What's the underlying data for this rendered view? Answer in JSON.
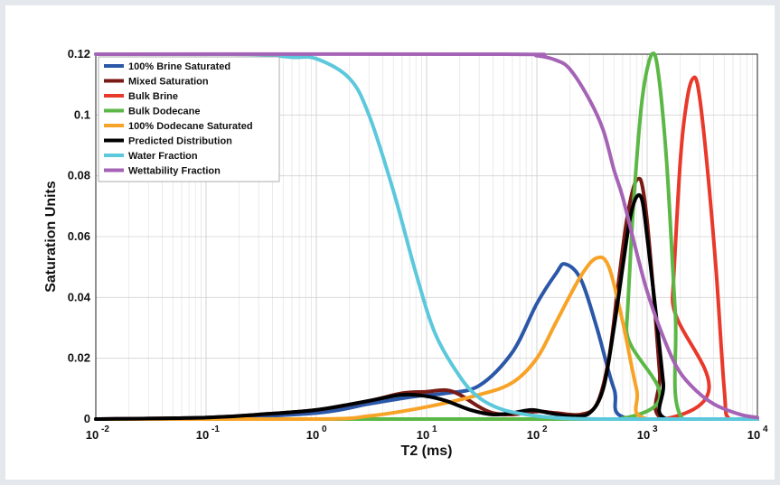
{
  "chart_data": {
    "type": "line",
    "title": "",
    "xlabel": "T2 (ms)",
    "ylabel": "Saturation Units",
    "xscale": "log",
    "xlim": [
      0.01,
      10000
    ],
    "ylim": [
      0,
      0.12
    ],
    "x_ticks": [
      {
        "base": "10",
        "exp": "-2",
        "value": 0.01
      },
      {
        "base": "10",
        "exp": "-1",
        "value": 0.1
      },
      {
        "base": "10",
        "exp": "0",
        "value": 1
      },
      {
        "base": "10",
        "exp": "1",
        "value": 10
      },
      {
        "base": "10",
        "exp": "2",
        "value": 100
      },
      {
        "base": "10",
        "exp": "3",
        "value": 1000
      },
      {
        "base": "10",
        "exp": "4",
        "value": 10000
      }
    ],
    "y_ticks": [
      {
        "label": "0",
        "value": 0
      },
      {
        "label": "0.02",
        "value": 0.02
      },
      {
        "label": "0.04",
        "value": 0.04
      },
      {
        "label": "0.06",
        "value": 0.06
      },
      {
        "label": "0.08",
        "value": 0.08
      },
      {
        "label": "0.1",
        "value": 0.1
      },
      {
        "label": "0.12",
        "value": 0.12
      }
    ],
    "grid": true,
    "legend_position": "top-left",
    "series": [
      {
        "name": "100% Brine Saturated",
        "color": "#2b57a8",
        "points": [
          [
            0.01,
            0
          ],
          [
            0.1,
            0.0003
          ],
          [
            1,
            0.002
          ],
          [
            3,
            0.005
          ],
          [
            8,
            0.0075
          ],
          [
            15,
            0.0085
          ],
          [
            30,
            0.011
          ],
          [
            60,
            0.022
          ],
          [
            100,
            0.038
          ],
          [
            150,
            0.048
          ],
          [
            180,
            0.051
          ],
          [
            250,
            0.046
          ],
          [
            350,
            0.03
          ],
          [
            500,
            0.01
          ],
          [
            700,
            0
          ],
          [
            10000,
            0
          ]
        ]
      },
      {
        "name": "Mixed Saturation",
        "color": "#7a1a14",
        "points": [
          [
            0.01,
            0
          ],
          [
            0.1,
            0.0005
          ],
          [
            0.3,
            0.0015
          ],
          [
            1,
            0.003
          ],
          [
            3,
            0.006
          ],
          [
            6,
            0.0085
          ],
          [
            10,
            0.009
          ],
          [
            15,
            0.0095
          ],
          [
            20,
            0.008
          ],
          [
            30,
            0.004
          ],
          [
            40,
            0.002
          ],
          [
            60,
            0.0015
          ],
          [
            100,
            0.0025
          ],
          [
            150,
            0.002
          ],
          [
            250,
            0.0015
          ],
          [
            350,
            0.005
          ],
          [
            450,
            0.02
          ],
          [
            550,
            0.045
          ],
          [
            650,
            0.065
          ],
          [
            750,
            0.076
          ],
          [
            830,
            0.079
          ],
          [
            900,
            0.077
          ],
          [
            1000,
            0.065
          ],
          [
            1150,
            0.04
          ],
          [
            1300,
            0.015
          ],
          [
            1400,
            0
          ],
          [
            10000,
            0
          ]
        ]
      },
      {
        "name": "Bulk Brine",
        "color": "#e8392a",
        "points": [
          [
            0.01,
            0
          ],
          [
            1450,
            0
          ],
          [
            1700,
            0.04
          ],
          [
            2000,
            0.085
          ],
          [
            2300,
            0.105
          ],
          [
            2600,
            0.112
          ],
          [
            2900,
            0.109
          ],
          [
            3400,
            0.088
          ],
          [
            4200,
            0.05
          ],
          [
            5000,
            0.01
          ],
          [
            5600,
            0
          ],
          [
            10000,
            0
          ]
        ]
      },
      {
        "name": "Bulk Dodecane",
        "color": "#5cb846",
        "points": [
          [
            0.01,
            0
          ],
          [
            560,
            0
          ],
          [
            650,
            0.03
          ],
          [
            750,
            0.07
          ],
          [
            900,
            0.105
          ],
          [
            1100,
            0.12
          ],
          [
            1250,
            0.115
          ],
          [
            1500,
            0.085
          ],
          [
            1800,
            0.035
          ],
          [
            2100,
            0
          ],
          [
            10000,
            0
          ]
        ]
      },
      {
        "name": "100% Dodecane Saturated",
        "color": "#f7a327",
        "points": [
          [
            0.01,
            0
          ],
          [
            1,
            0
          ],
          [
            3,
            0.001
          ],
          [
            10,
            0.004
          ],
          [
            30,
            0.008
          ],
          [
            60,
            0.012
          ],
          [
            100,
            0.02
          ],
          [
            150,
            0.032
          ],
          [
            250,
            0.047
          ],
          [
            350,
            0.053
          ],
          [
            450,
            0.05
          ],
          [
            600,
            0.032
          ],
          [
            800,
            0.01
          ],
          [
            1000,
            0
          ],
          [
            10000,
            0
          ]
        ]
      },
      {
        "name": "Predicted Distribution",
        "color": "#000000",
        "points": [
          [
            0.01,
            0
          ],
          [
            0.1,
            0.0005
          ],
          [
            0.3,
            0.0015
          ],
          [
            1,
            0.003
          ],
          [
            3,
            0.006
          ],
          [
            6,
            0.008
          ],
          [
            10,
            0.0075
          ],
          [
            15,
            0.006
          ],
          [
            25,
            0.003
          ],
          [
            40,
            0.0015
          ],
          [
            60,
            0.002
          ],
          [
            90,
            0.003
          ],
          [
            130,
            0.002
          ],
          [
            200,
            0.001
          ],
          [
            300,
            0.002
          ],
          [
            400,
            0.01
          ],
          [
            500,
            0.03
          ],
          [
            600,
            0.05
          ],
          [
            700,
            0.066
          ],
          [
            800,
            0.073
          ],
          [
            900,
            0.072
          ],
          [
            1000,
            0.06
          ],
          [
            1200,
            0.035
          ],
          [
            1400,
            0.012
          ],
          [
            1500,
            0
          ],
          [
            10000,
            0
          ]
        ]
      },
      {
        "name": "Water Fraction",
        "color": "#5cc8dc",
        "points": [
          [
            0.01,
            0.12
          ],
          [
            0.1,
            0.12
          ],
          [
            0.3,
            0.1199
          ],
          [
            0.6,
            0.119
          ],
          [
            1,
            0.1185
          ],
          [
            2,
            0.112
          ],
          [
            3,
            0.1
          ],
          [
            5,
            0.075
          ],
          [
            8,
            0.048
          ],
          [
            12,
            0.028
          ],
          [
            20,
            0.014
          ],
          [
            30,
            0.007
          ],
          [
            50,
            0.003
          ],
          [
            100,
            0.001
          ],
          [
            200,
            0.0002
          ],
          [
            500,
            0
          ],
          [
            10000,
            0
          ]
        ]
      },
      {
        "name": "Wettability Fraction",
        "color": "#a563b6",
        "points": [
          [
            0.01,
            0.12
          ],
          [
            50,
            0.12
          ],
          [
            100,
            0.1195
          ],
          [
            150,
            0.118
          ],
          [
            200,
            0.115
          ],
          [
            300,
            0.105
          ],
          [
            400,
            0.095
          ],
          [
            500,
            0.082
          ],
          [
            600,
            0.073
          ],
          [
            800,
            0.055
          ],
          [
            1000,
            0.042
          ],
          [
            1300,
            0.03
          ],
          [
            1800,
            0.018
          ],
          [
            2500,
            0.011
          ],
          [
            4000,
            0.005
          ],
          [
            7000,
            0.0015
          ],
          [
            10000,
            0.0005
          ]
        ]
      }
    ]
  }
}
